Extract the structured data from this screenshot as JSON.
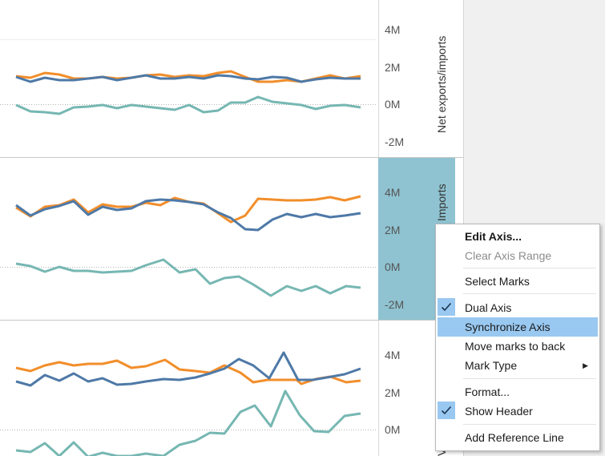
{
  "panes": [
    {
      "axis_title": "Net exports/imports",
      "ticks": [
        "4M",
        "2M",
        "0M",
        "-2M"
      ],
      "selected": false
    },
    {
      "axis_title": "Imports",
      "ticks": [
        "4M",
        "2M",
        "0M",
        "-2M"
      ],
      "selected": true
    },
    {
      "axis_title": "V",
      "ticks": [
        "4M",
        "2M",
        "0M"
      ],
      "selected": false
    }
  ],
  "colors": {
    "orange": "#F28E2B",
    "blue": "#4E79A7",
    "teal": "#76B7B2",
    "selected_header": "#8FC3D1",
    "menu_highlight": "#99c8f0"
  },
  "context_menu": {
    "items": [
      {
        "label": "Edit Axis...",
        "bold": true
      },
      {
        "label": "Clear Axis Range",
        "disabled": true
      },
      {
        "separator": true
      },
      {
        "label": "Select Marks"
      },
      {
        "separator": true
      },
      {
        "label": "Dual Axis",
        "checked": true
      },
      {
        "label": "Synchronize Axis",
        "highlighted": true
      },
      {
        "label": "Move marks to back"
      },
      {
        "label": "Mark Type",
        "submenu": true
      },
      {
        "separator": true
      },
      {
        "label": "Format..."
      },
      {
        "label": "Show Header",
        "checked": true
      },
      {
        "separator": true
      },
      {
        "label": "Add Reference Line"
      }
    ]
  }
}
